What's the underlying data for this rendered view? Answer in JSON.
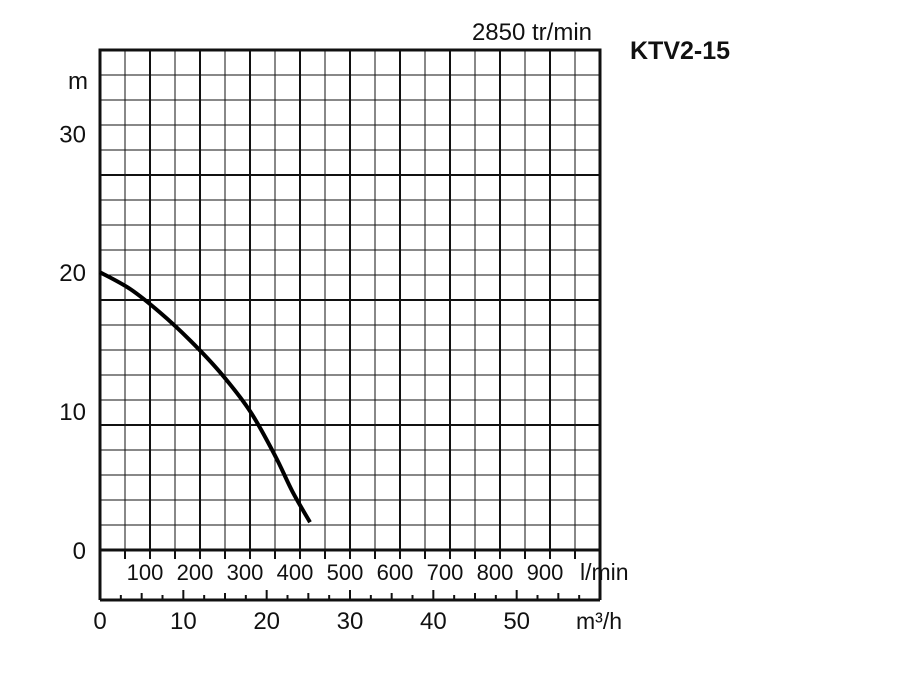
{
  "chart_data": {
    "type": "line",
    "title": "KTV2-15",
    "subtitle": "2850 tr/min",
    "ylabel": "m",
    "ylim": [
      0,
      36
    ],
    "y_ticks": [
      {
        "value": 0,
        "label": "0"
      },
      {
        "value": 10,
        "label": "10"
      },
      {
        "value": 20,
        "label": "20"
      },
      {
        "value": 30,
        "label": "30"
      }
    ],
    "x_primary": {
      "unit": "l/min",
      "range": [
        0,
        1000
      ],
      "ticks": [
        {
          "value": 100,
          "label": "100"
        },
        {
          "value": 200,
          "label": "200"
        },
        {
          "value": 300,
          "label": "300"
        },
        {
          "value": 400,
          "label": "400"
        },
        {
          "value": 500,
          "label": "500"
        },
        {
          "value": 600,
          "label": "600"
        },
        {
          "value": 700,
          "label": "700"
        },
        {
          "value": 800,
          "label": "800"
        },
        {
          "value": 900,
          "label": "900"
        }
      ]
    },
    "x_secondary": {
      "unit": "m³/h",
      "range": [
        0,
        60
      ],
      "ticks": [
        {
          "value": 0,
          "label": "0"
        },
        {
          "value": 10,
          "label": "10"
        },
        {
          "value": 20,
          "label": "20"
        },
        {
          "value": 30,
          "label": "30"
        },
        {
          "value": 40,
          "label": "40"
        },
        {
          "value": 50,
          "label": "50"
        }
      ]
    },
    "grid": true,
    "series": [
      {
        "x_unit": "l/min",
        "points": [
          {
            "x": 0,
            "y": 20
          },
          {
            "x": 60,
            "y": 18.8
          },
          {
            "x": 120,
            "y": 17.1
          },
          {
            "x": 180,
            "y": 15.1
          },
          {
            "x": 240,
            "y": 12.8
          },
          {
            "x": 300,
            "y": 10
          },
          {
            "x": 350,
            "y": 6.8
          },
          {
            "x": 385,
            "y": 4.2
          },
          {
            "x": 420,
            "y": 2
          }
        ],
        "color": "#000000"
      }
    ]
  }
}
